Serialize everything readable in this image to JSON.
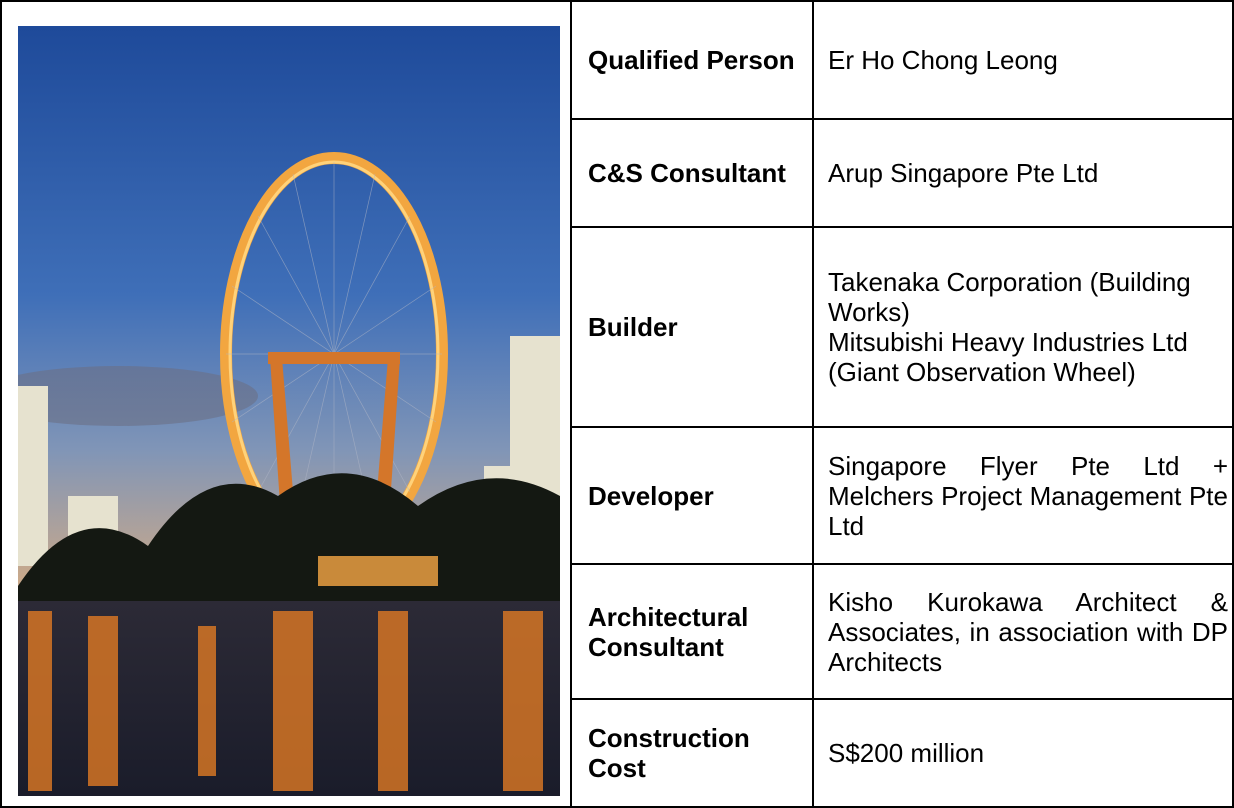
{
  "table": {
    "rows": [
      {
        "label": "Qualified Person",
        "value": [
          "Er Ho Chong Leong"
        ]
      },
      {
        "label": "C&S Consultant",
        "value": [
          "Arup Singapore Pte Ltd"
        ]
      },
      {
        "label": "Builder",
        "value": [
          "Takenaka Corporation (Building Works)",
          "Mitsubishi Heavy Industries Ltd (Giant Observation Wheel)"
        ]
      },
      {
        "label": "Developer",
        "value": [
          "Singapore Flyer Pte Ltd + Melchers Project Management Pte Ltd"
        ]
      },
      {
        "label": "Architectural Consultant",
        "value": [
          "Kisho Kurokawa Architect & Associates, in association with DP Architects"
        ]
      },
      {
        "label": "Construction Cost",
        "value": [
          "S$200 million"
        ]
      }
    ]
  }
}
